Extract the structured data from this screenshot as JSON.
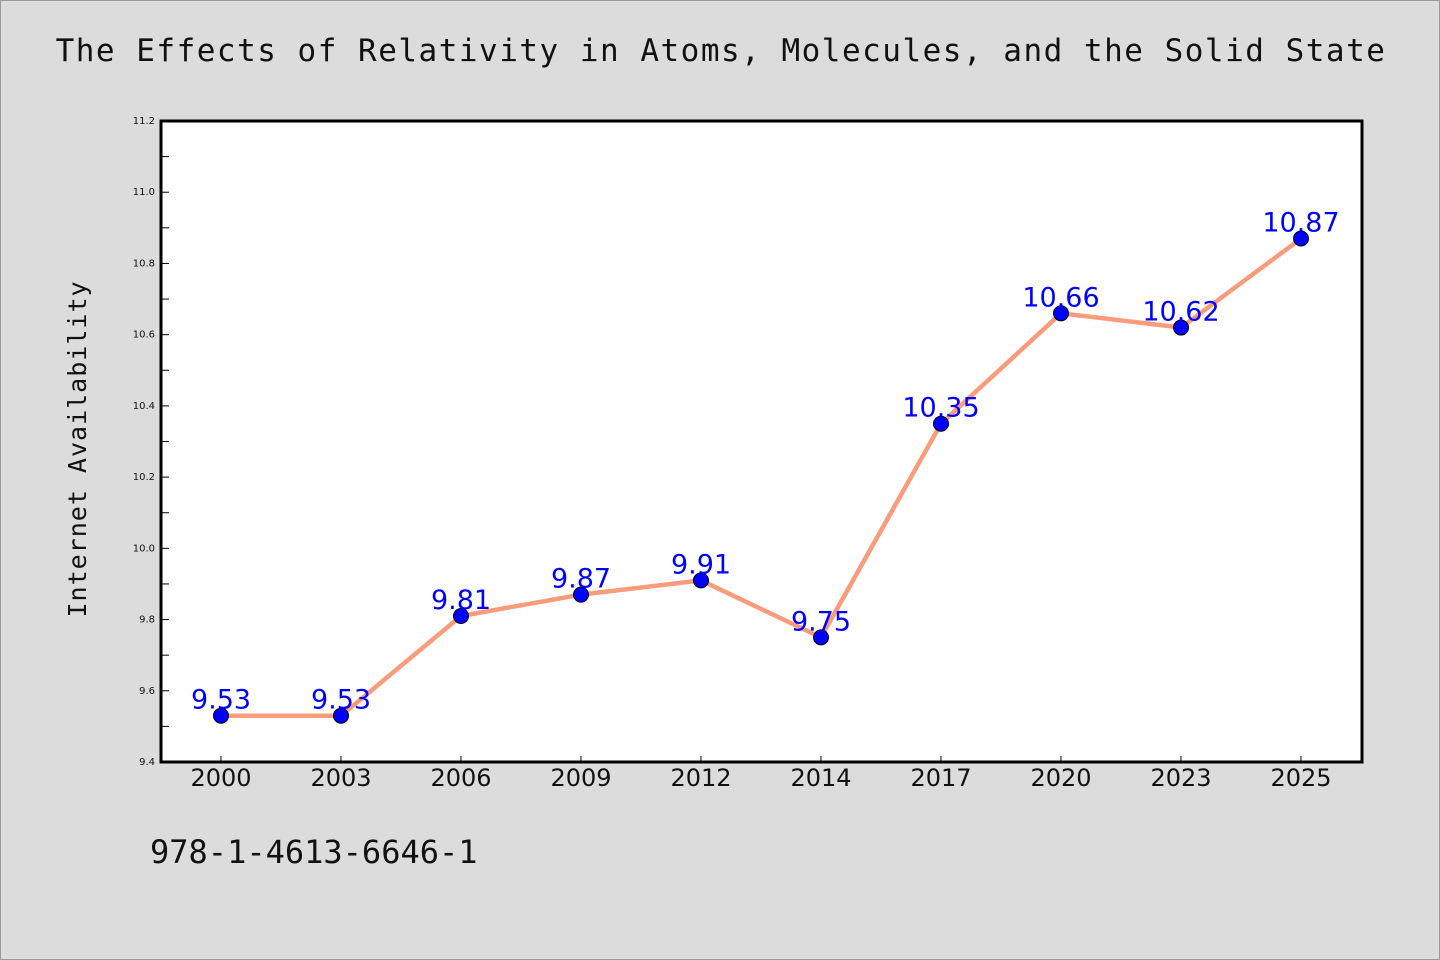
{
  "footer": {
    "isbn": "978-1-4613-6646-1"
  },
  "colors": {
    "background": "#dcdcdc",
    "plot_background": "#ffffff",
    "line": "#f89c7c",
    "marker": "#0000ff",
    "data_label": "#0000ff",
    "axis": "#000000"
  },
  "chart_data": {
    "type": "line",
    "title": "The Effects of Relativity in Atoms, Molecules, and the Solid State",
    "xlabel": "",
    "ylabel": "Internet Availability",
    "categories": [
      "2000",
      "2003",
      "2006",
      "2009",
      "2012",
      "2014",
      "2017",
      "2020",
      "2023",
      "2025"
    ],
    "series": [
      {
        "values": [
          9.53,
          9.53,
          9.81,
          9.87,
          9.91,
          9.75,
          10.35,
          10.66,
          10.62,
          10.87
        ],
        "data_labels": [
          "9.53",
          "9.53",
          "9.81",
          "9.87",
          "9.91",
          "9.75",
          "10.35",
          "10.66",
          "10.62",
          "10.87"
        ]
      }
    ],
    "ylim": [
      9.4,
      11.2
    ],
    "yticks": [
      "9.4",
      "9.6",
      "9.8",
      "10.0",
      "10.2",
      "10.4",
      "10.6",
      "10.8",
      "11.0",
      "11.2"
    ],
    "grid": false,
    "legend": "none"
  }
}
